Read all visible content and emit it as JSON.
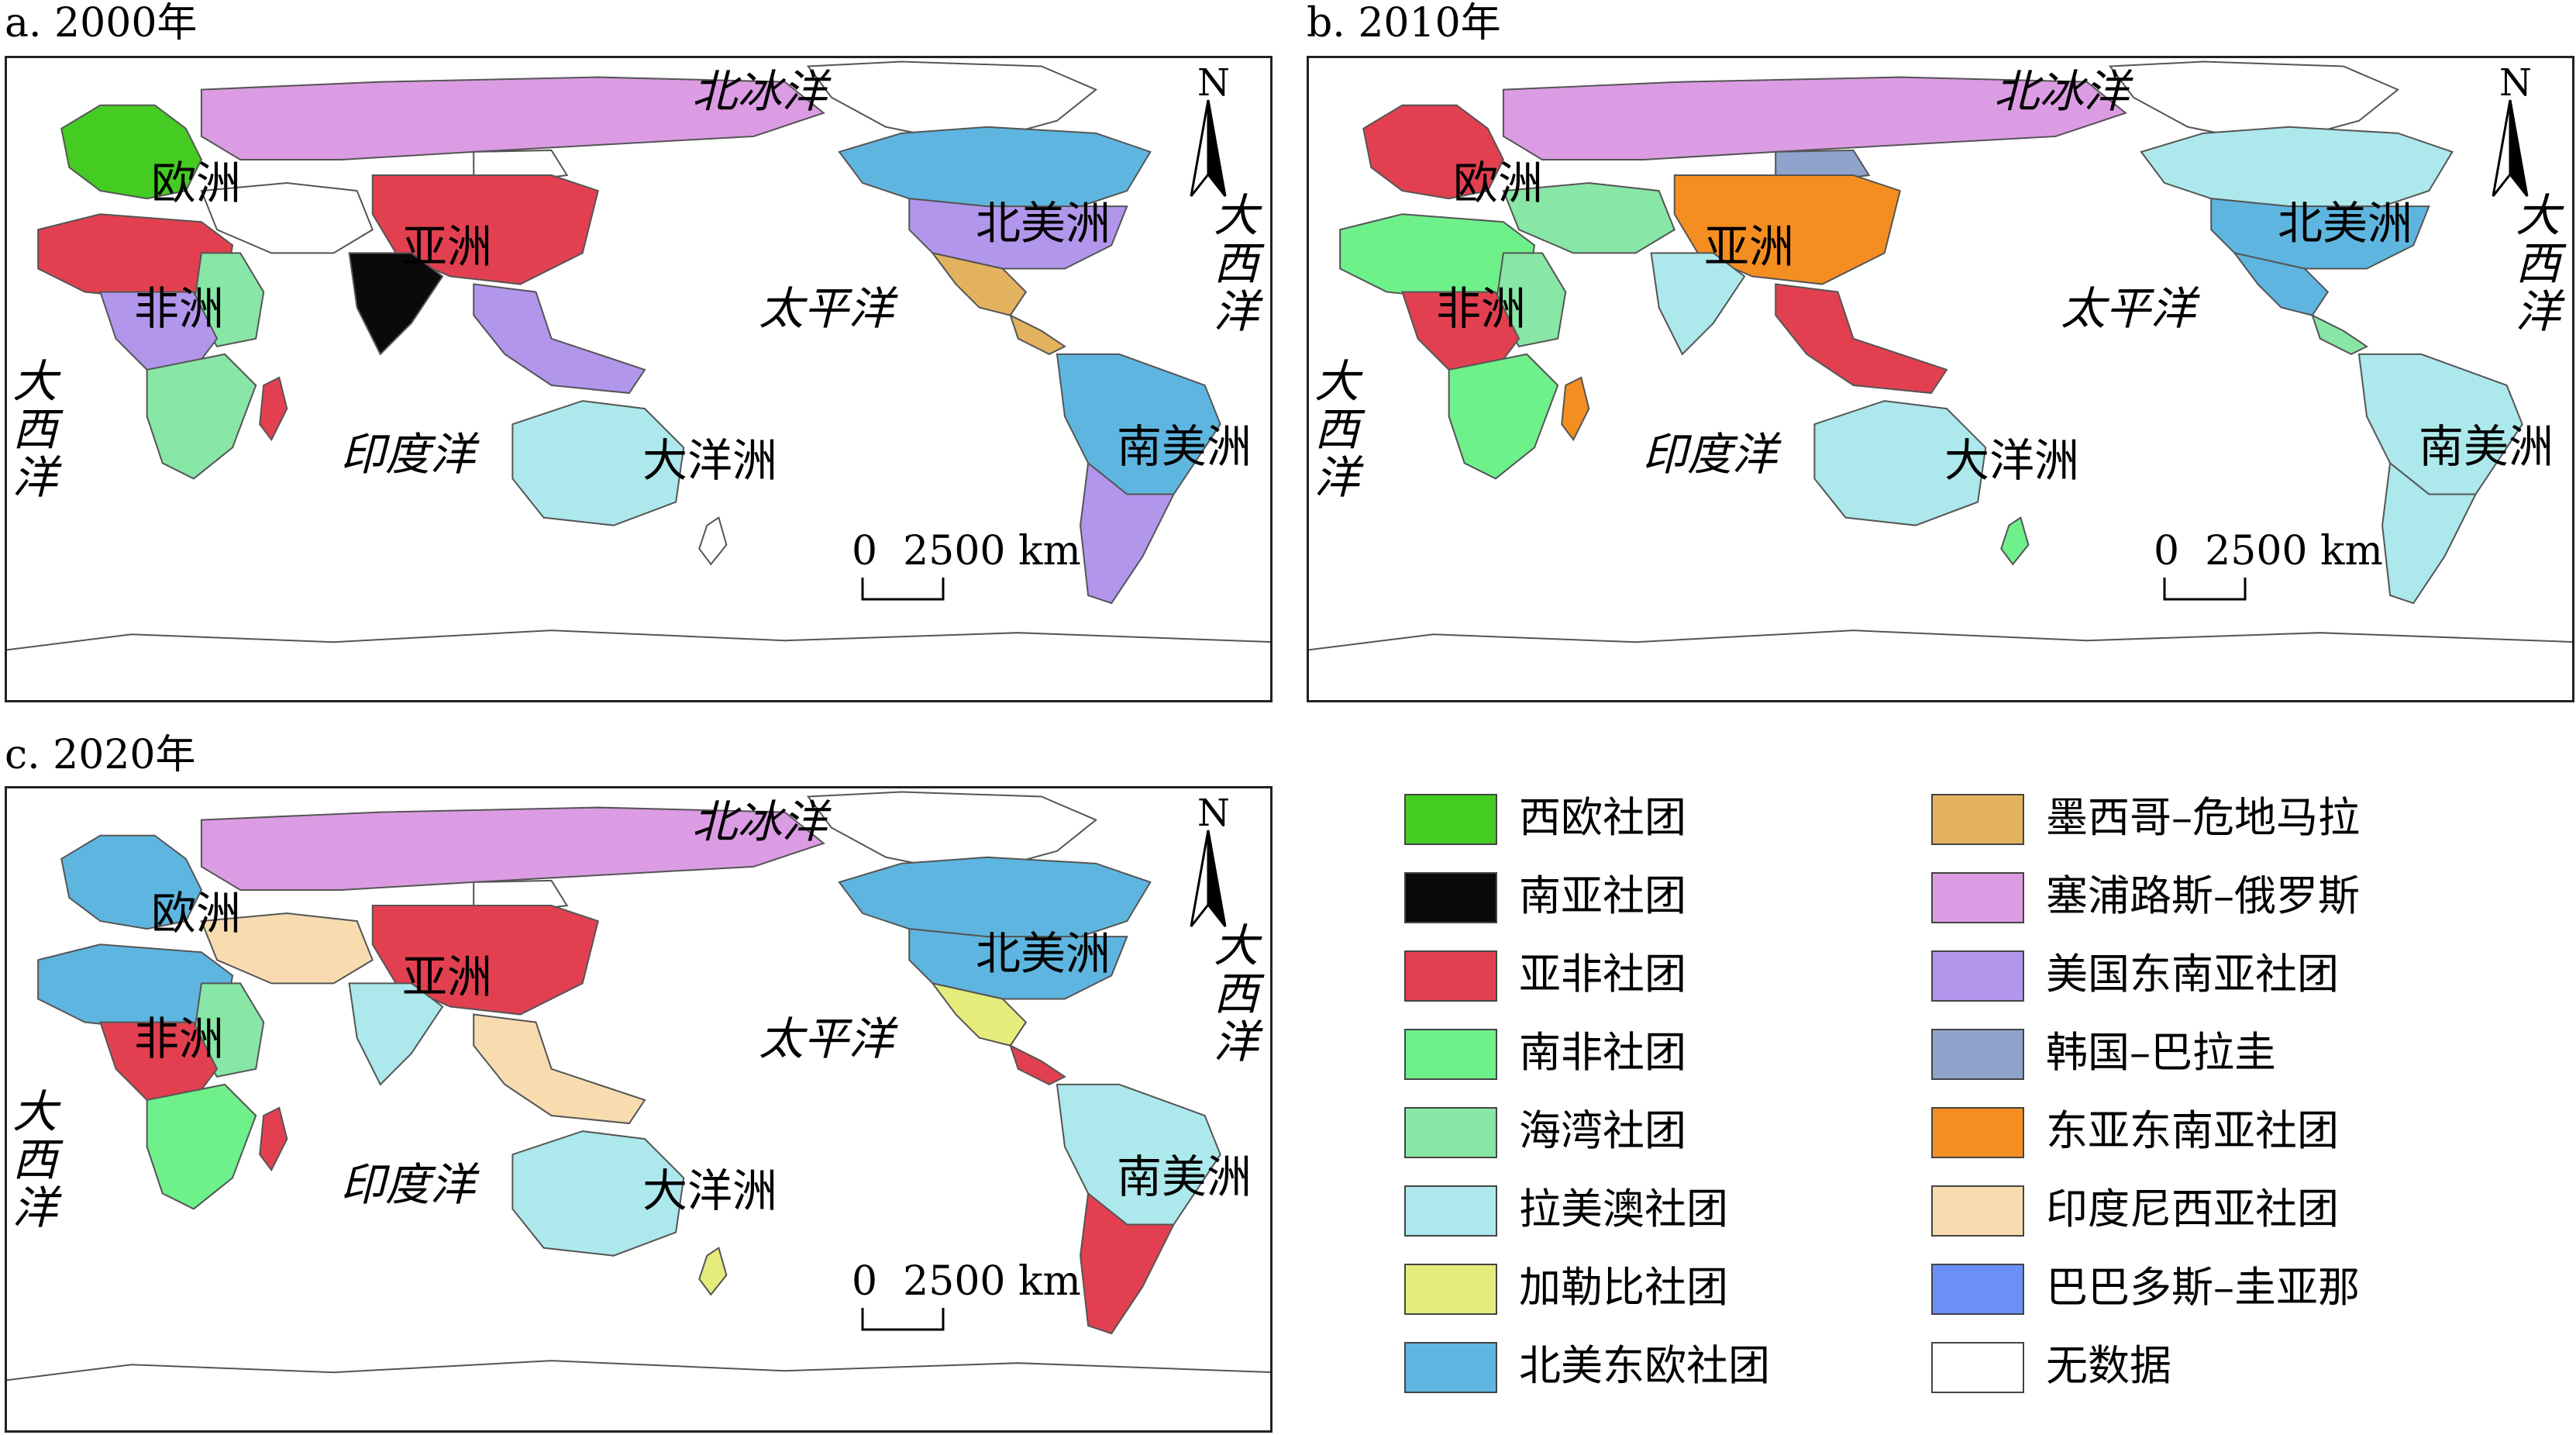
{
  "panels": [
    {
      "title": "a. 2000年"
    },
    {
      "title": "b. 2010年"
    },
    {
      "title": "c. 2020年"
    }
  ],
  "labels": {
    "arctic": "北冰洋",
    "europe": "欧洲",
    "asia": "亚洲",
    "africa": "非洲",
    "north_america": "北美洲",
    "south_america": "南美洲",
    "pacific": "太平洋",
    "indian": "印度洋",
    "oceania": "大洋洲",
    "atlantic_left": "大西洋",
    "atlantic_right": "大西洋"
  },
  "north_arrow": "N",
  "scale_bar": {
    "zero": "0",
    "value": "2500 km"
  },
  "legend": [
    {
      "label": "西欧社团",
      "color": "#44cc22"
    },
    {
      "label": "南亚社团",
      "color": "#0a0a0a"
    },
    {
      "label": "亚非社团",
      "color": "#e24050"
    },
    {
      "label": "南非社团",
      "color": "#6ef08a"
    },
    {
      "label": "海湾社团",
      "color": "#88e6a6"
    },
    {
      "label": "拉美澳社团",
      "color": "#ace8ec"
    },
    {
      "label": "加勒比社团",
      "color": "#e6ec7c"
    },
    {
      "label": "北美东欧社团",
      "color": "#5eb6e0"
    },
    {
      "label": "墨西哥–危地马拉",
      "color": "#e2b25e"
    },
    {
      "label": "塞浦路斯–俄罗斯",
      "color": "#dc9ce4"
    },
    {
      "label": "美国东南亚社团",
      "color": "#b296ec"
    },
    {
      "label": "韩国–巴拉圭",
      "color": "#8ea4cc"
    },
    {
      "label": "东亚东南亚社团",
      "color": "#f48e20"
    },
    {
      "label": "印度尼西亚社团",
      "color": "#f8dcb0"
    },
    {
      "label": "巴巴多斯–圭亚那",
      "color": "#6a90f8"
    },
    {
      "label": "无数据",
      "color": "#ffffff"
    }
  ],
  "maps": [
    {
      "europe": "#44cc22",
      "russia": "#dc9ce4",
      "china": "#e24050",
      "india": "#0a0a0a",
      "north_africa": "#e24050",
      "east_africa": "#88e6a6",
      "central_africa": "#b296ec",
      "south_africa": "#88e6a6",
      "madagascar": "#e24050",
      "middle_east": "#ffffff",
      "se_asia": "#b296ec",
      "australia": "#ace8ec",
      "new_zealand": "#ffffff",
      "north_america": "#5eb6e0",
      "usa": "#b296ec",
      "mexico": "#e2b25e",
      "central_america": "#e2b25e",
      "south_america": "#5eb6e0",
      "south_cone": "#b296ec",
      "greenland": "#ffffff",
      "mongolia": "#ffffff"
    },
    {
      "europe": "#e24050",
      "russia": "#dc9ce4",
      "china": "#f48e20",
      "india": "#ace8ec",
      "north_africa": "#6ef08a",
      "east_africa": "#88e6a6",
      "central_africa": "#e24050",
      "south_africa": "#6ef08a",
      "madagascar": "#f48e20",
      "middle_east": "#88e6a6",
      "se_asia": "#e24050",
      "australia": "#ace8ec",
      "new_zealand": "#6ef08a",
      "north_america": "#ace8ec",
      "usa": "#5eb6e0",
      "mexico": "#5eb6e0",
      "central_america": "#88e6a6",
      "south_america": "#ace8ec",
      "south_cone": "#ace8ec",
      "greenland": "#ffffff",
      "mongolia": "#8ea4cc"
    },
    {
      "europe": "#5eb6e0",
      "russia": "#dc9ce4",
      "china": "#e24050",
      "india": "#ace8ec",
      "north_africa": "#5eb6e0",
      "east_africa": "#88e6a6",
      "central_africa": "#e24050",
      "south_africa": "#6ef08a",
      "madagascar": "#e24050",
      "middle_east": "#f8dcb0",
      "se_asia": "#f8dcb0",
      "australia": "#ace8ec",
      "new_zealand": "#e6ec7c",
      "north_america": "#5eb6e0",
      "usa": "#5eb6e0",
      "mexico": "#e6ec7c",
      "central_america": "#e24050",
      "south_america": "#ace8ec",
      "south_cone": "#e24050",
      "greenland": "#ffffff",
      "mongolia": "#ffffff"
    }
  ]
}
